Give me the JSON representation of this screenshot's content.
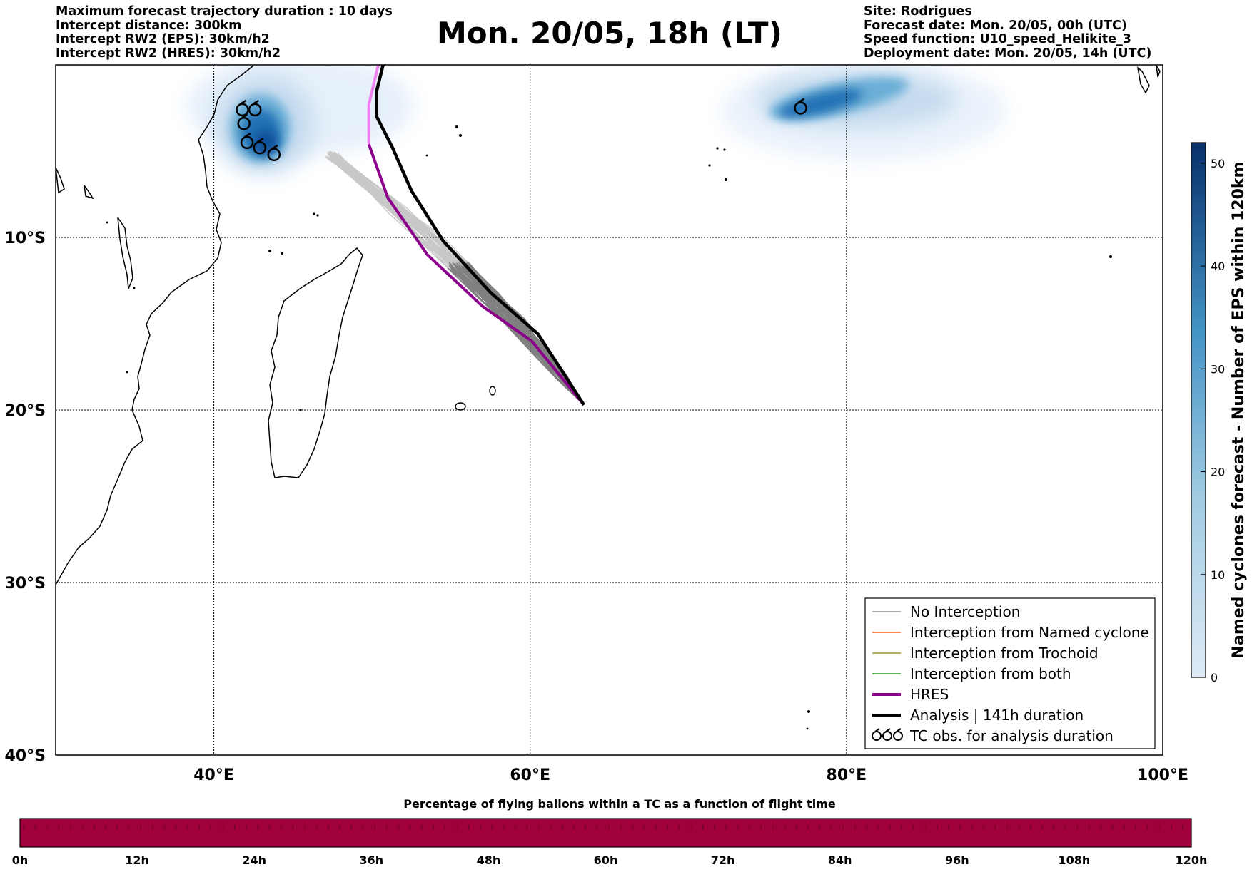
{
  "header": {
    "left_lines": [
      "Maximum forecast trajectory duration : 10 days",
      "Intercept distance: 300km",
      "Intercept RW2 (EPS):  30km/h2",
      "Intercept RW2 (HRES): 30km/h2"
    ],
    "right_lines": [
      "Site: Rodrigues",
      "Forecast date: Mon. 20/05, 00h (UTC)",
      "Speed function: U10_speed_Helikite_3",
      "Deployment date: Mon. 20/05, 14h (UTC)"
    ],
    "title": "Mon. 20/05, 18h (LT)"
  },
  "map": {
    "lon_range": [
      30,
      100
    ],
    "lat_range": [
      -40,
      0
    ],
    "lon_ticks": [
      {
        "lon": 40,
        "label": "40°E"
      },
      {
        "lon": 60,
        "label": "60°E"
      },
      {
        "lon": 80,
        "label": "80°E"
      },
      {
        "lon": 100,
        "label": "100°E"
      }
    ],
    "lat_ticks": [
      {
        "lat": -10,
        "label": "10°S"
      },
      {
        "lat": -20,
        "label": "20°S"
      },
      {
        "lat": -30,
        "label": "30°S"
      },
      {
        "lat": -40,
        "label": "40°S"
      }
    ],
    "gridlines": "dotted",
    "deployment_site": {
      "lon": 63.4,
      "lat": -19.7
    },
    "tc_observations": [
      {
        "lon": 41.8,
        "lat": -2.6
      },
      {
        "lon": 42.6,
        "lat": -2.6
      },
      {
        "lon": 41.9,
        "lat": -3.4
      },
      {
        "lon": 42.1,
        "lat": -4.5
      },
      {
        "lon": 42.9,
        "lat": -4.8
      },
      {
        "lon": 43.8,
        "lat": -5.2
      },
      {
        "lon": 77.1,
        "lat": -2.5
      }
    ],
    "analysis_track": [
      [
        63.4,
        -19.7
      ],
      [
        60.5,
        -15.6
      ],
      [
        57.5,
        -13.2
      ],
      [
        54.5,
        -10.2
      ],
      [
        52.5,
        -7.3
      ],
      [
        51.3,
        -4.8
      ],
      [
        50.3,
        -3.0
      ],
      [
        50.3,
        -1.5
      ],
      [
        50.7,
        0
      ]
    ],
    "hres_track": [
      [
        63.4,
        -19.7
      ],
      [
        60.1,
        -16.0
      ],
      [
        57,
        -14
      ],
      [
        53.5,
        -11
      ],
      [
        51,
        -7.7
      ],
      [
        49.8,
        -4.6
      ],
      [
        49.8,
        -2.3
      ],
      [
        50.4,
        0
      ]
    ]
  },
  "legend": {
    "items": [
      {
        "label": "No Interception",
        "color": "#808080",
        "width": 1.2
      },
      {
        "label": "Interception from Named cyclone",
        "color": "#ff4500",
        "width": 1.2
      },
      {
        "label": "Interception from Trochoid",
        "color": "#808000",
        "width": 1.2
      },
      {
        "label": "Interception from both",
        "color": "#008000",
        "width": 1.2
      },
      {
        "label": "HRES",
        "color": "#8b008b",
        "width": 4
      },
      {
        "label": "Analysis | 141h duration",
        "color": "#000000",
        "width": 4
      }
    ],
    "tc_obs_label": "TC obs. for analysis duration"
  },
  "colorbar": {
    "label": "Named cyclones forecast - Number of EPS within 120km",
    "min": 0,
    "max": 52,
    "ticks": [
      "0",
      "10",
      "20",
      "30",
      "40",
      "50"
    ],
    "color_low": "#deebf7",
    "color_high": "#08306b"
  },
  "time_bar": {
    "title": "Percentage of flying ballons within a TC as a function of flight time",
    "color": "#a0003c",
    "ticks": [
      "0h",
      "12h",
      "24h",
      "36h",
      "48h",
      "60h",
      "72h",
      "84h",
      "96h",
      "108h",
      "120h"
    ]
  }
}
